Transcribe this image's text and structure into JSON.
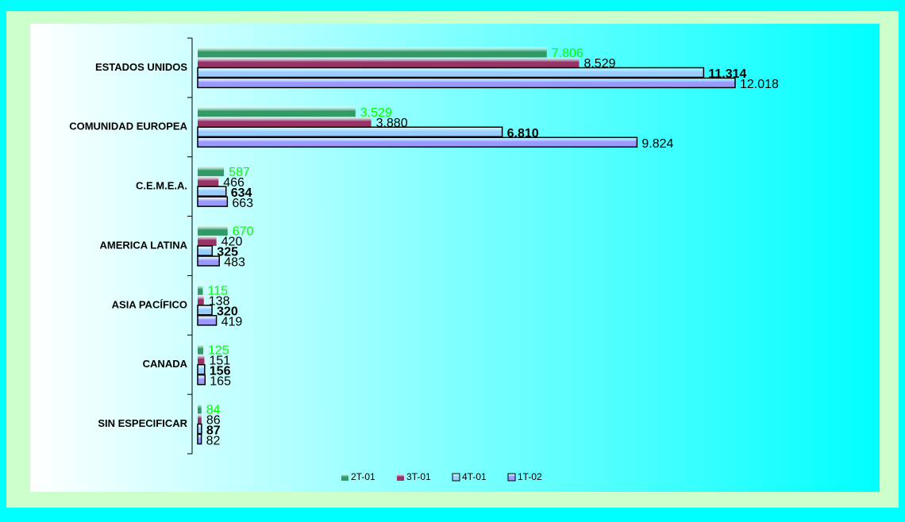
{
  "chart_data": {
    "type": "hbar",
    "categories": [
      "ESTADOS UNIDOS",
      "COMUNIDAD EUROPEA",
      "C.E.M.E.A.",
      "AMERICA LATINA",
      "ASIA PACÍFICO",
      "CANADA",
      "SIN ESPECIFICAR"
    ],
    "series": [
      {
        "name": "2T-01",
        "color": "#339966",
        "label_color": "#00ff00",
        "label_weight": "normal",
        "values": [
          7806,
          3529,
          587,
          670,
          115,
          125,
          84
        ],
        "value_labels": [
          "7.806",
          "3.529",
          "587",
          "670",
          "115",
          "125",
          "84"
        ]
      },
      {
        "name": "3T-01",
        "color": "#993366",
        "label_color": "#000000",
        "label_weight": "normal",
        "values": [
          8529,
          3880,
          466,
          420,
          138,
          151,
          86
        ],
        "value_labels": [
          "8.529",
          "3.880",
          "466",
          "420",
          "138",
          "151",
          "86"
        ]
      },
      {
        "name": "4T-01",
        "color": "#99ccff",
        "label_color": "#000000",
        "label_weight": "bold",
        "values": [
          11314,
          6810,
          634,
          325,
          320,
          156,
          87
        ],
        "value_labels": [
          "11.314",
          "6.810",
          "634",
          "325",
          "320",
          "156",
          "87"
        ]
      },
      {
        "name": "1T-02",
        "color": "#9999ff",
        "label_color": "#000000",
        "label_weight": "normal",
        "values": [
          12018,
          9824,
          663,
          483,
          419,
          165,
          82
        ],
        "value_labels": [
          "12.018",
          "9.824",
          "663",
          "483",
          "419",
          "165",
          "82"
        ]
      }
    ],
    "legend": "bottom"
  }
}
